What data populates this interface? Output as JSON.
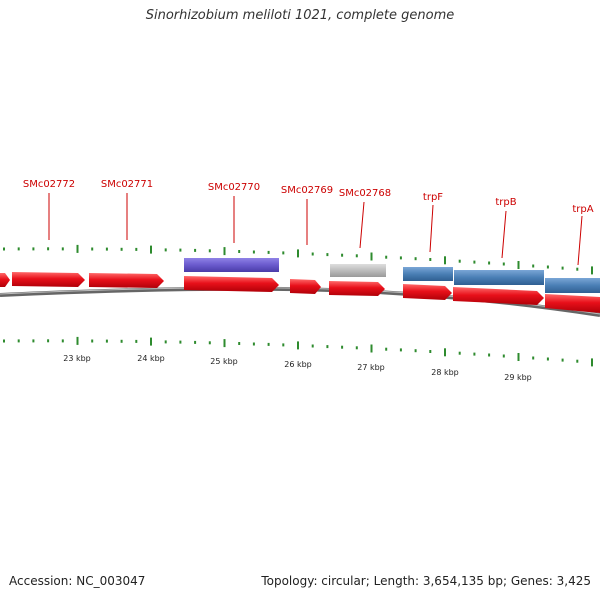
{
  "title": "Sinorhizobium meliloti 1021, complete genome",
  "footer": {
    "accession": "Accession: NC_003047",
    "topology": "Topology: circular;",
    "length": "Length: 3,654,135 bp;",
    "genes": "Genes: 3,425"
  },
  "colors": {
    "cds": "#e8101a",
    "gene_purple": "#6a5acd",
    "gene_grey": "#b8b8b8",
    "gene_blue": "#4a7fb5",
    "tick": "#2e8b2e",
    "backbone": "#888888",
    "label": "#cc0000"
  },
  "ticks": [
    "23 kbp",
    "24 kbp",
    "25 kbp",
    "26 kbp",
    "27 kbp",
    "28 kbp",
    "29 kbp"
  ],
  "gene_labels": [
    "SMc02772",
    "SMc02771",
    "SMc02770",
    "SMc02769",
    "SMc02768",
    "trpF",
    "trpB",
    "trpA"
  ]
}
